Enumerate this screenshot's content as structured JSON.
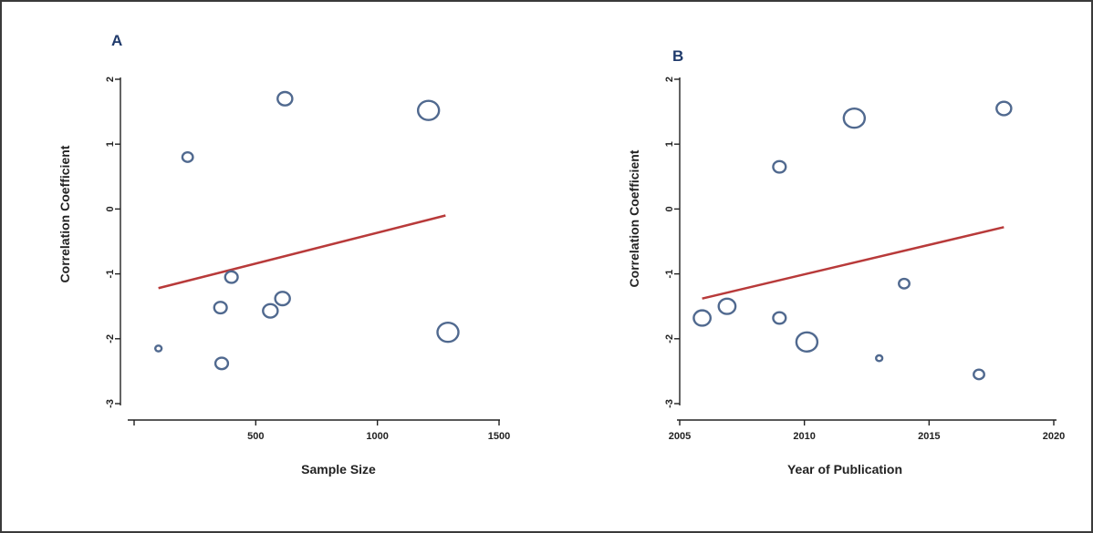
{
  "chart_data": [
    {
      "type": "scatter",
      "panel": "A",
      "xlabel": "Sample Size",
      "ylabel": "Correlation Coefficient",
      "xlim": [
        0,
        1500
      ],
      "ylim": [
        -3.2,
        2.2
      ],
      "xticks": [
        500,
        1000,
        1500
      ],
      "yticks": [
        -3,
        -2,
        -1,
        0,
        1,
        2
      ],
      "points": [
        {
          "x": 100,
          "y": -2.15,
          "size": 3
        },
        {
          "x": 220,
          "y": 0.8,
          "size": 5
        },
        {
          "x": 355,
          "y": -1.52,
          "size": 6
        },
        {
          "x": 360,
          "y": -2.38,
          "size": 6
        },
        {
          "x": 400,
          "y": -1.05,
          "size": 6
        },
        {
          "x": 560,
          "y": -1.57,
          "size": 7
        },
        {
          "x": 610,
          "y": -1.38,
          "size": 7
        },
        {
          "x": 620,
          "y": 1.7,
          "size": 7
        },
        {
          "x": 1210,
          "y": 1.52,
          "size": 10
        },
        {
          "x": 1290,
          "y": -1.9,
          "size": 10
        }
      ],
      "fit_line": {
        "x": [
          100,
          1280
        ],
        "y": [
          -1.22,
          -0.1
        ]
      }
    },
    {
      "type": "scatter",
      "panel": "B",
      "xlabel": "Year of Publication",
      "ylabel": "Correlation Coefficient",
      "xlim": [
        2005,
        2020
      ],
      "ylim": [
        -3.2,
        2.2
      ],
      "xticks": [
        2005,
        2010,
        2015,
        2020
      ],
      "yticks": [
        -3,
        -2,
        -1,
        0,
        1,
        2
      ],
      "points": [
        {
          "x": 2005.9,
          "y": -1.68,
          "size": 8
        },
        {
          "x": 2006.9,
          "y": -1.5,
          "size": 8
        },
        {
          "x": 2009.0,
          "y": 0.65,
          "size": 6
        },
        {
          "x": 2009.0,
          "y": -1.68,
          "size": 6
        },
        {
          "x": 2010.1,
          "y": -2.05,
          "size": 10
        },
        {
          "x": 2012.0,
          "y": 1.4,
          "size": 10
        },
        {
          "x": 2013.0,
          "y": -2.3,
          "size": 3
        },
        {
          "x": 2014.0,
          "y": -1.15,
          "size": 5
        },
        {
          "x": 2017.0,
          "y": -2.55,
          "size": 5
        },
        {
          "x": 2018.0,
          "y": 1.55,
          "size": 7
        }
      ],
      "fit_line": {
        "x": [
          2005.9,
          2018
        ],
        "y": [
          -1.38,
          -0.28
        ]
      }
    }
  ]
}
